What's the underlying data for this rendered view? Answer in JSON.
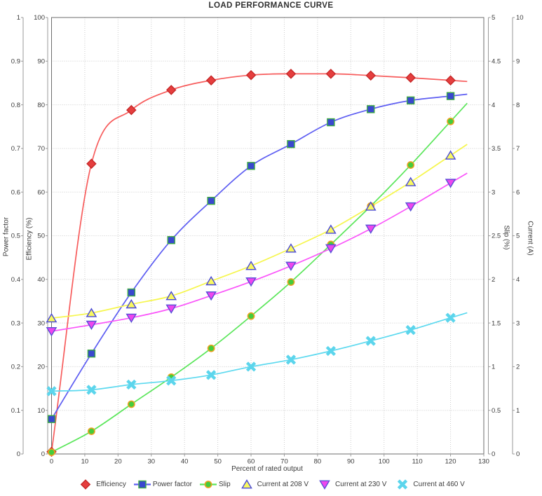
{
  "title": "LOAD PERFORMANCE CURVE",
  "axes": {
    "x": {
      "label": "Percent of rated output",
      "min": 0,
      "max": 130,
      "ticks": [
        "0",
        "10",
        "20",
        "30",
        "40",
        "50",
        "60",
        "70",
        "80",
        "90",
        "100",
        "110",
        "120",
        "130"
      ]
    },
    "power_factor": {
      "label": "Power factor",
      "min": 0,
      "max": 1,
      "ticks": [
        "0",
        "0.1",
        "0.2",
        "0.3",
        "0.4",
        "0.5",
        "0.6",
        "0.7",
        "0.8",
        "0.9",
        "1"
      ]
    },
    "efficiency": {
      "label": "Efficiency (%)",
      "min": 0,
      "max": 100,
      "ticks": [
        "0",
        "10",
        "20",
        "30",
        "40",
        "50",
        "60",
        "70",
        "80",
        "90",
        "100"
      ]
    },
    "slip": {
      "label": "Slip (%)",
      "min": 0,
      "max": 5,
      "ticks": [
        "0",
        "0.5",
        "1",
        "1.5",
        "2",
        "2.5",
        "3",
        "3.5",
        "4",
        "4.5",
        "5"
      ]
    },
    "current": {
      "label": "Current (A)",
      "min": 0,
      "max": 10,
      "ticks": [
        "0",
        "1",
        "2",
        "3",
        "4",
        "5",
        "6",
        "7",
        "8",
        "9",
        "10"
      ]
    }
  },
  "chart_data": {
    "type": "line",
    "title": "LOAD PERFORMANCE CURVE",
    "xlabel": "Percent of rated output",
    "x_range": [
      0,
      130
    ],
    "grid": true,
    "legend_position": "bottom",
    "curve_extend_to_x": 125,
    "x": [
      0,
      12,
      24,
      36,
      48,
      60,
      72,
      84,
      96,
      108,
      120
    ],
    "series": [
      {
        "name": "Efficiency",
        "axis": "efficiency",
        "marker": "diamond",
        "line_color": "#f75c5c",
        "fill": "#e53e3e",
        "outline": "#c62828",
        "values": [
          0.5,
          66.5,
          78.8,
          83.4,
          85.6,
          86.8,
          87.1,
          87.1,
          86.7,
          86.2,
          85.6
        ]
      },
      {
        "name": "Power factor",
        "axis": "power_factor",
        "marker": "square",
        "line_color": "#5d5df2",
        "fill": "#3948cf",
        "outline": "#3faa46",
        "values": [
          0.08,
          0.23,
          0.37,
          0.49,
          0.58,
          0.66,
          0.71,
          0.76,
          0.79,
          0.81,
          0.82
        ]
      },
      {
        "name": "Slip",
        "axis": "slip",
        "marker": "circle",
        "line_color": "#5ae65a",
        "fill": "#44cc3c",
        "outline": "#eca220",
        "values": [
          0.02,
          0.26,
          0.57,
          0.88,
          1.21,
          1.58,
          1.97,
          2.4,
          2.84,
          3.31,
          3.81
        ]
      },
      {
        "name": "Current at 208 V",
        "axis": "current",
        "marker": "triangle-up",
        "line_color": "#f6f64e",
        "fill": "#f8f860",
        "outline": "#4848d8",
        "values": [
          3.11,
          3.23,
          3.43,
          3.62,
          3.96,
          4.31,
          4.71,
          5.14,
          5.67,
          6.23,
          6.84
        ]
      },
      {
        "name": "Current at 230 V",
        "axis": "current",
        "marker": "triangle-down",
        "line_color": "#fa55fa",
        "fill": "#ee46ee",
        "outline": "#5a50d8",
        "values": [
          2.81,
          2.96,
          3.12,
          3.33,
          3.63,
          3.95,
          4.31,
          4.71,
          5.16,
          5.67,
          6.21
        ]
      },
      {
        "name": "Current at 460 V",
        "axis": "current",
        "marker": "x-cross",
        "line_color": "#5cd9ef",
        "fill": "#5cd5ec",
        "outline": "#5cd5ec",
        "values": [
          1.44,
          1.47,
          1.59,
          1.68,
          1.81,
          2.0,
          2.16,
          2.36,
          2.59,
          2.84,
          3.12
        ]
      }
    ]
  },
  "legend": {
    "items": [
      {
        "label": "Efficiency",
        "show_line": false
      },
      {
        "label": "Power factor",
        "show_line": true
      },
      {
        "label": "Slip",
        "show_line": true
      },
      {
        "label": "Current at 208 V",
        "show_line": false
      },
      {
        "label": "Current at 230 V",
        "show_line": false
      },
      {
        "label": "Current at 460 V",
        "show_line": false
      }
    ]
  },
  "colors": {
    "background": "#ffffff",
    "grid": "#cccccc",
    "plot_border": "#6e6e6e",
    "axis_line": "#9a9a9a",
    "tick_text": "#3c3c3c",
    "title_text": "#2f2f2f"
  }
}
